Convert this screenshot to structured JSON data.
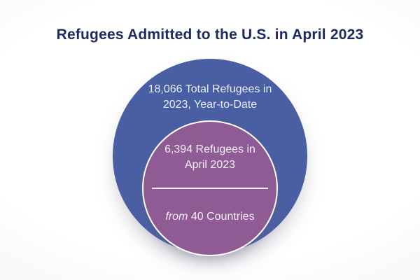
{
  "header": {
    "title": "Refugees Admitted to the U.S. in April 2023",
    "title_color": "#1e2b63"
  },
  "venn": {
    "outer": {
      "line1": "18,066 Total Refugees in",
      "line2": "2023, Year-to-Date",
      "fill": "#4a5fa3",
      "text_color": "#e9ecf4"
    },
    "inner": {
      "line1": "6,394 Refugees in",
      "line2": "April 2023",
      "from_word": "from",
      "countries_text": "40 Countries",
      "fill": "#8e5b94",
      "border_color": "#fdfdfd",
      "text_color": "#f2eff6",
      "divider_color": "#f1eef4"
    }
  },
  "chart_data": {
    "type": "pie",
    "variant": "nested-proportional-circles",
    "title": "Refugees Admitted to the U.S. in April 2023",
    "series": [
      {
        "name": "Total Refugees in 2023, Year-to-Date",
        "value": 18066,
        "color": "#4a5fa3"
      },
      {
        "name": "Refugees in April 2023",
        "value": 6394,
        "color": "#8e5b94"
      }
    ],
    "annotations": [
      {
        "text": "from 40 Countries",
        "value": 40,
        "unit": "Countries",
        "applies_to": "Refugees in April 2023"
      }
    ],
    "legend_position": "none",
    "grid": false
  }
}
